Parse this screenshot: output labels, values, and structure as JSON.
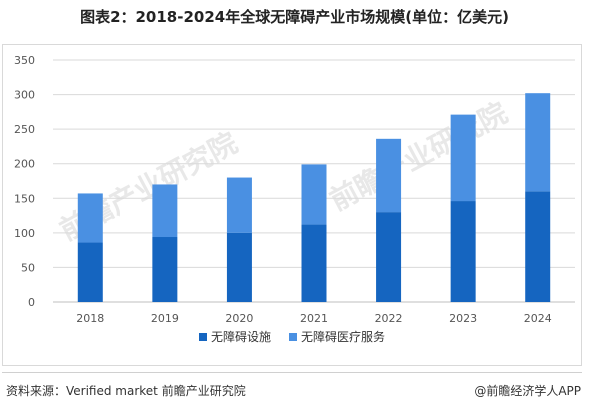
{
  "title": "图表2：2018-2024年全球无障碍产业市场规模(单位：亿美元)",
  "source_text": "资料来源：Verified market 前瞻产业研究院",
  "brand_text": "@前瞻经济学人APP",
  "watermark_text": "前瞻产业研究院",
  "colors": {
    "series1": "#1565c0",
    "series2": "#4a90e2",
    "grid": "#d9d9d9",
    "axis_text": "#555555"
  },
  "chart_data": {
    "type": "bar",
    "stacked": true,
    "categories": [
      "2018",
      "2019",
      "2020",
      "2021",
      "2022",
      "2023",
      "2024"
    ],
    "series": [
      {
        "name": "无障碍设施",
        "values": [
          86,
          94,
          100,
          112,
          130,
          146,
          160
        ]
      },
      {
        "name": "无障碍医疗服务",
        "values": [
          71,
          76,
          80,
          87,
          106,
          125,
          142
        ]
      }
    ],
    "yticks": [
      0,
      50,
      100,
      150,
      200,
      250,
      300,
      350
    ],
    "ylim": [
      0,
      350
    ],
    "grid": true,
    "legend": "bottom"
  }
}
